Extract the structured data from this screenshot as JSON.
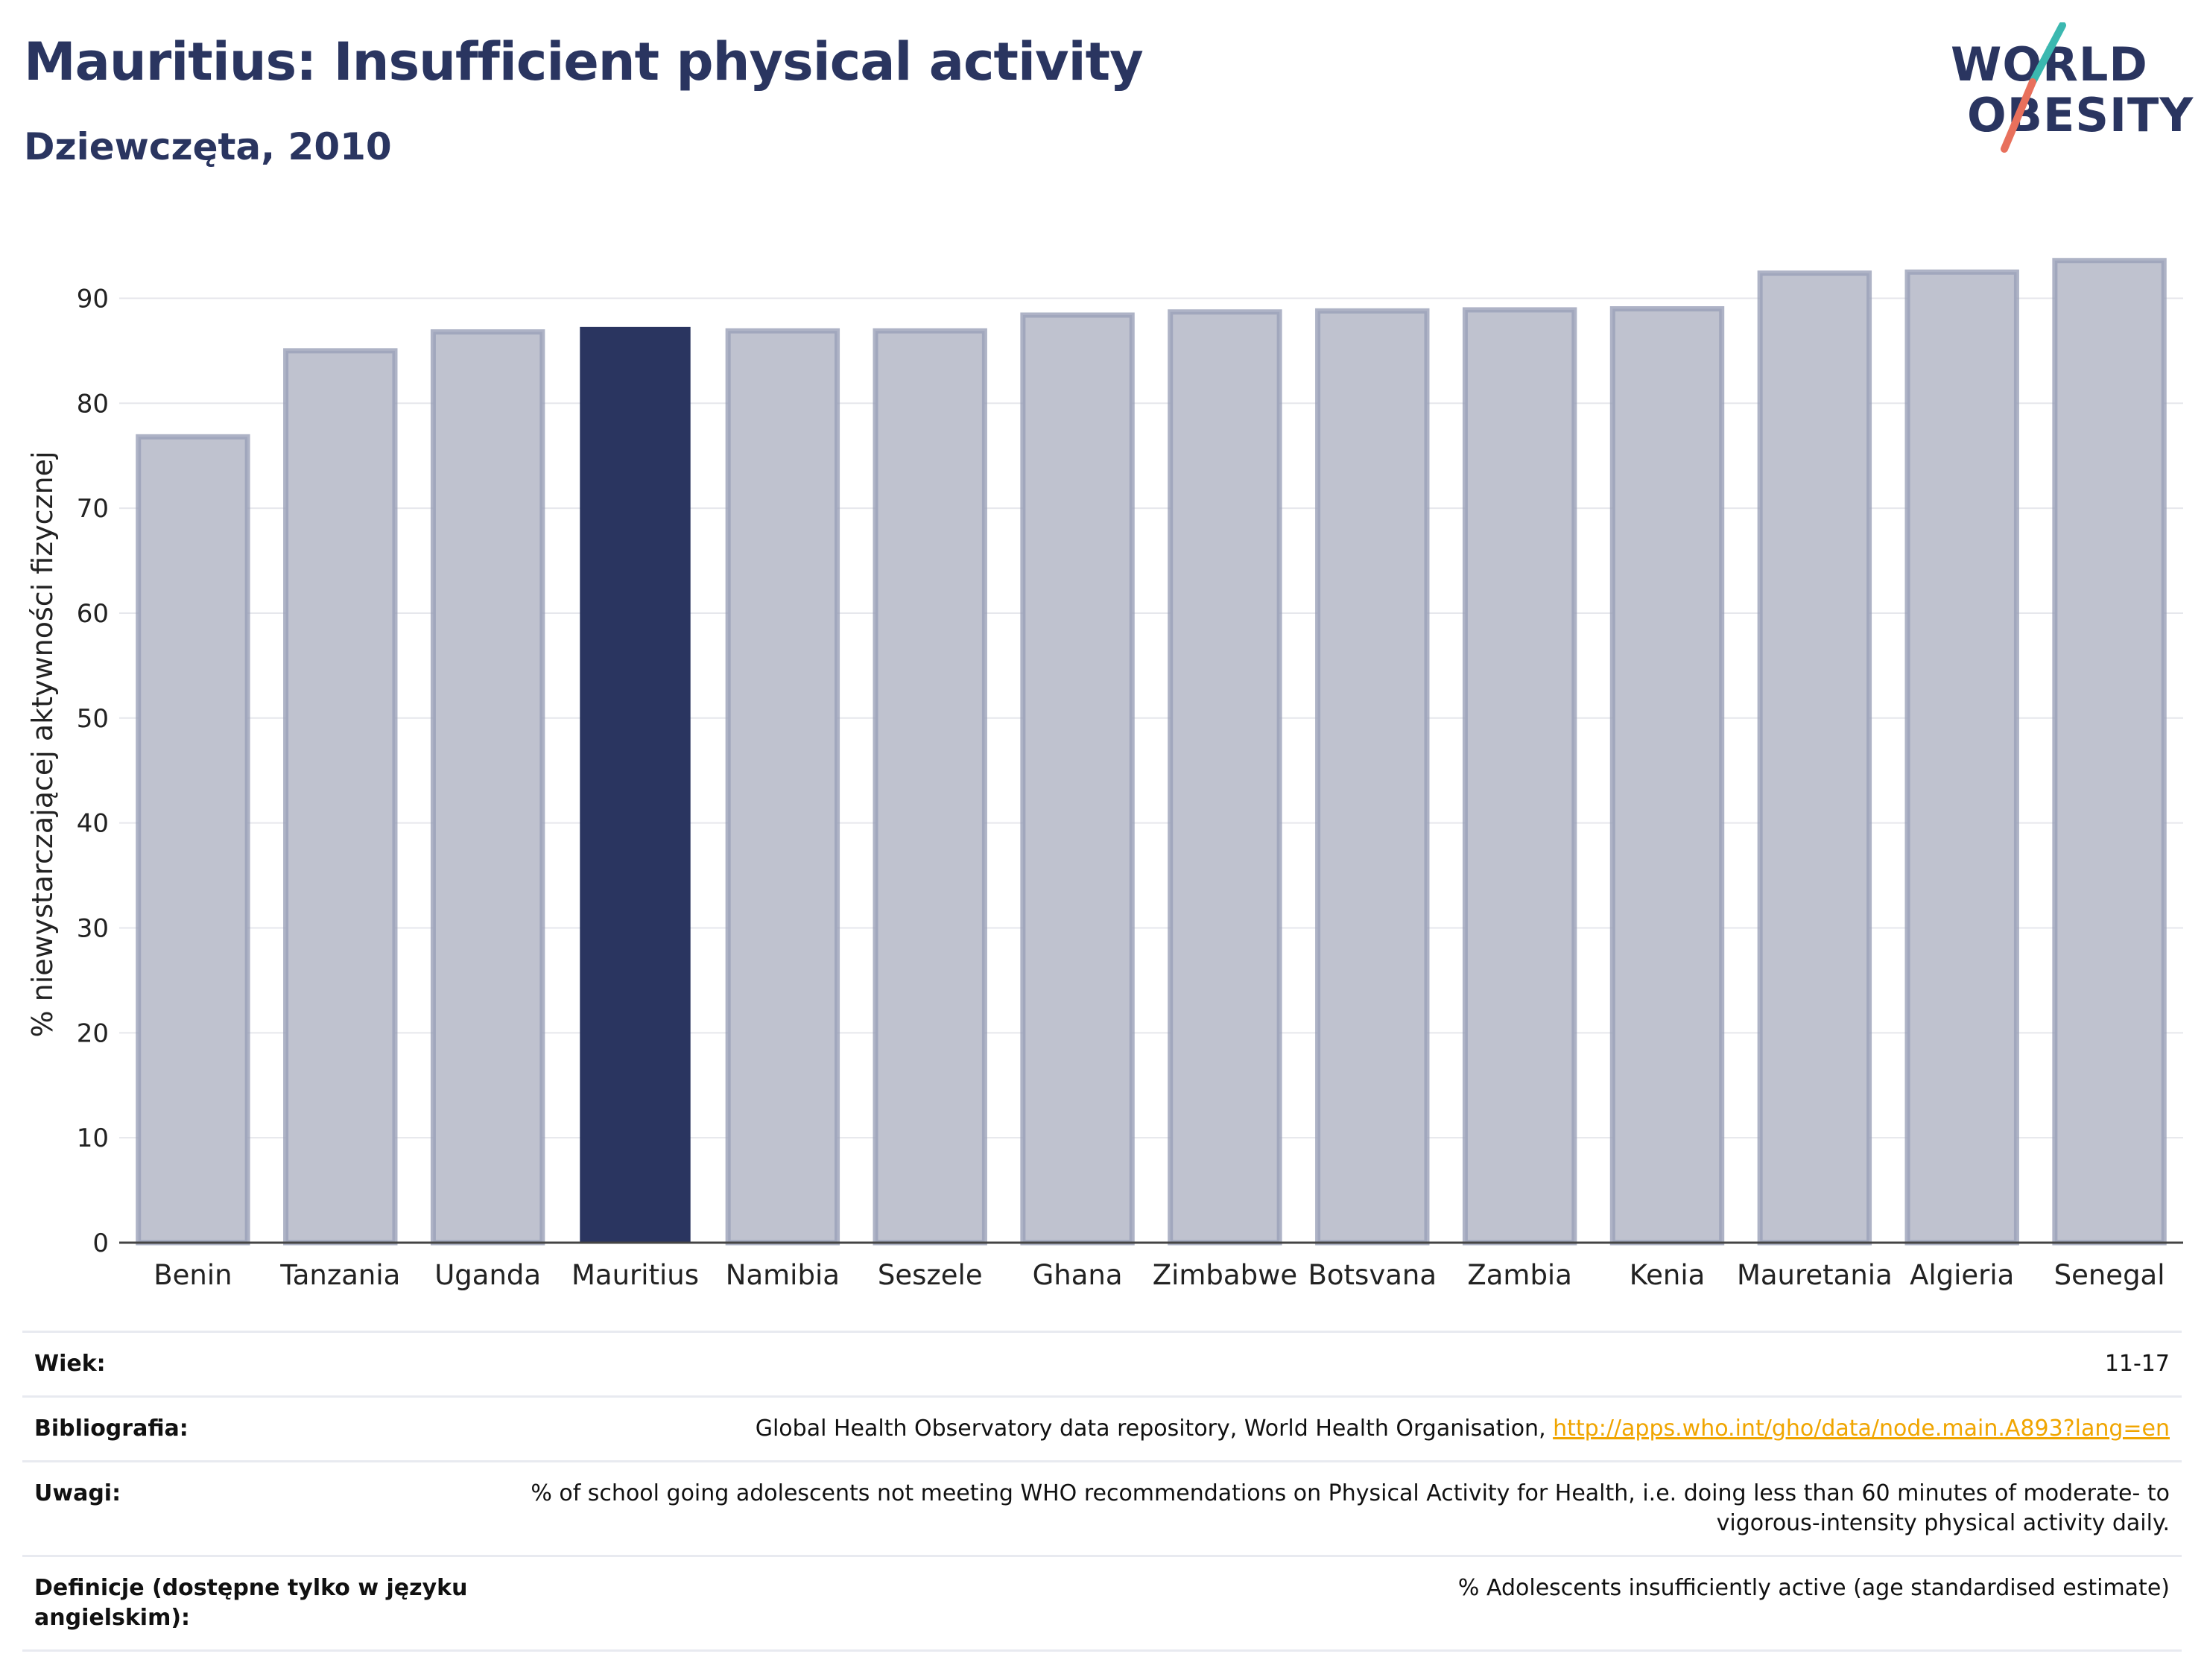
{
  "header": {
    "title": "Mauritius: Insufficient physical activity",
    "subtitle": "Dziewczęta, 2010"
  },
  "logo": {
    "line1": "WORLD",
    "line2": "OBESITY"
  },
  "colors": {
    "highlight": "#2a3560",
    "bar": "#bfc2cf",
    "bar_border": "#9aa0b8",
    "text": "#2a3560",
    "link": "#f0a500"
  },
  "chart_data": {
    "type": "bar",
    "categories": [
      "Benin",
      "Tanzania",
      "Uganda",
      "Mauritius",
      "Namibia",
      "Seszele",
      "Ghana",
      "Zimbabwe",
      "Botsvana",
      "Zambia",
      "Kenia",
      "Mauretania",
      "Algieria",
      "Senegal"
    ],
    "values": [
      76.8,
      85.0,
      86.8,
      87.2,
      86.9,
      86.9,
      88.4,
      88.7,
      88.8,
      88.9,
      89.0,
      92.4,
      92.5,
      93.6
    ],
    "highlight": "Mauritius",
    "ylabel": "% niewystarczającej aktywności fizycznej",
    "ylim": [
      0,
      95
    ],
    "yticks": [
      0,
      10,
      20,
      30,
      40,
      50,
      60,
      70,
      80,
      90
    ],
    "grid": true
  },
  "footer": {
    "rows": [
      {
        "label": "Wiek:",
        "value": "11-17"
      },
      {
        "label": "Bibliografia:",
        "value": "Global Health Observatory data repository, World Health Organisation, ",
        "link": "http://apps.who.int/gho/data/node.main.A893?lang=en"
      },
      {
        "label": "Uwagi:",
        "value": "% of school going adolescents not meeting WHO recommendations on Physical Activity for Health, i.e. doing less than 60 minutes of moderate- to vigorous-intensity physical activity daily."
      },
      {
        "label": "Definicje (dostępne tylko w języku angielskim):",
        "value": "% Adolescents insufficiently active (age standardised estimate)"
      }
    ]
  }
}
